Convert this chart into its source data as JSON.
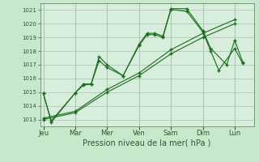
{
  "xlabel": "Pression niveau de la mer( hPa )",
  "background_color": "#c8e8cc",
  "plot_bg_color": "#d8eedd",
  "grid_color": "#b0ccb4",
  "line_color": "#1a6b1a",
  "ylim": [
    1012.5,
    1021.5
  ],
  "yticks": [
    1013,
    1014,
    1015,
    1016,
    1017,
    1018,
    1019,
    1020,
    1021
  ],
  "day_labels": [
    "Jeu",
    "Mar",
    "Mer",
    "Ven",
    "Sam",
    "Dim",
    "Lun"
  ],
  "day_positions": [
    0,
    2,
    4,
    6,
    8,
    10,
    12
  ],
  "xlim": [
    -0.2,
    13.2
  ],
  "series": [
    {
      "x": [
        0.0,
        0.5,
        2.0,
        2.5,
        3.0,
        3.5,
        4.0,
        5.0,
        6.0,
        6.5,
        7.0,
        7.5,
        8.0,
        9.0,
        10.0,
        10.5,
        11.5,
        12.0,
        12.5
      ],
      "y": [
        1014.9,
        1012.8,
        1014.95,
        1015.6,
        1015.6,
        1017.6,
        1017.0,
        1016.2,
        1018.5,
        1019.3,
        1019.3,
        1019.1,
        1021.1,
        1021.1,
        1019.5,
        1018.2,
        1017.0,
        1018.8,
        1017.2
      ]
    },
    {
      "x": [
        0.0,
        2.0,
        4.0,
        6.0,
        8.0,
        10.0,
        12.0
      ],
      "y": [
        1013.0,
        1013.5,
        1015.0,
        1016.2,
        1017.8,
        1019.0,
        1020.0
      ]
    },
    {
      "x": [
        0.0,
        2.0,
        4.0,
        6.0,
        8.0,
        10.0,
        12.0
      ],
      "y": [
        1013.1,
        1013.6,
        1015.2,
        1016.4,
        1018.1,
        1019.3,
        1020.3
      ]
    },
    {
      "x": [
        0.0,
        0.5,
        2.0,
        2.5,
        3.0,
        3.5,
        4.0,
        5.0,
        6.0,
        6.5,
        7.0,
        7.5,
        8.0,
        9.0,
        10.0,
        10.5,
        11.0,
        12.0,
        12.5
      ],
      "y": [
        1014.9,
        1012.9,
        1014.95,
        1015.5,
        1015.6,
        1017.3,
        1016.8,
        1016.2,
        1018.4,
        1019.2,
        1019.2,
        1019.0,
        1021.05,
        1020.9,
        1019.4,
        1018.0,
        1016.6,
        1018.2,
        1017.1
      ]
    }
  ]
}
